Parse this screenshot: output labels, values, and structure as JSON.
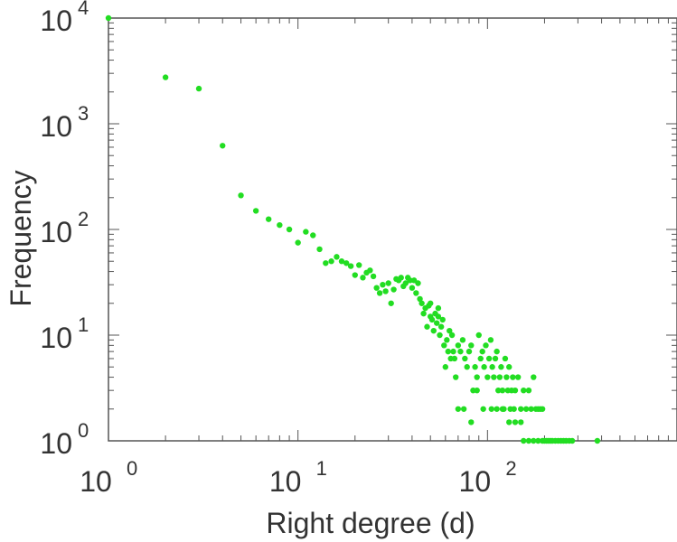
{
  "chart_data": {
    "type": "scatter",
    "xlabel": "Right degree (d)",
    "ylabel": "Frequency",
    "xscale": "log",
    "yscale": "log",
    "xlim": [
      1,
      1000
    ],
    "ylim": [
      1,
      10000
    ],
    "grid": false,
    "marker_color": "#22dd22",
    "x_ticks": [
      {
        "base": "10",
        "exp": "0",
        "value": 1
      },
      {
        "base": "10",
        "exp": "1",
        "value": 10
      },
      {
        "base": "10",
        "exp": "2",
        "value": 100
      }
    ],
    "y_ticks": [
      {
        "base": "10",
        "exp": "0",
        "value": 1
      },
      {
        "base": "10",
        "exp": "1",
        "value": 10
      },
      {
        "base": "10",
        "exp": "2",
        "value": 100
      },
      {
        "base": "10",
        "exp": "3",
        "value": 1000
      },
      {
        "base": "10",
        "exp": "4",
        "value": 10000
      }
    ],
    "series": [
      {
        "points": [
          [
            1,
            10000
          ],
          [
            2,
            2750
          ],
          [
            3,
            2150
          ],
          [
            4,
            620
          ],
          [
            5,
            210
          ],
          [
            6,
            150
          ],
          [
            7,
            125
          ],
          [
            8,
            110
          ],
          [
            9,
            100
          ],
          [
            10,
            75
          ],
          [
            11,
            95
          ],
          [
            12,
            88
          ],
          [
            13,
            65
          ],
          [
            14,
            48
          ],
          [
            15,
            50
          ],
          [
            16,
            55
          ],
          [
            17,
            50
          ],
          [
            18,
            48
          ],
          [
            19,
            45
          ],
          [
            20,
            37
          ],
          [
            21,
            46
          ],
          [
            22,
            35
          ],
          [
            23,
            39
          ],
          [
            24,
            41
          ],
          [
            25,
            36
          ],
          [
            26,
            28
          ],
          [
            27,
            25
          ],
          [
            28,
            30
          ],
          [
            29,
            26
          ],
          [
            30,
            31
          ],
          [
            31,
            20
          ],
          [
            32,
            27
          ],
          [
            33,
            34
          ],
          [
            34,
            33
          ],
          [
            35,
            35
          ],
          [
            36,
            29
          ],
          [
            37,
            31
          ],
          [
            38,
            35
          ],
          [
            39,
            33
          ],
          [
            40,
            28
          ],
          [
            41,
            33
          ],
          [
            42,
            25
          ],
          [
            43,
            31
          ],
          [
            44,
            22
          ],
          [
            45,
            20
          ],
          [
            46,
            16
          ],
          [
            47,
            18
          ],
          [
            48,
            12
          ],
          [
            49,
            19
          ],
          [
            50,
            15
          ],
          [
            51,
            14
          ],
          [
            52,
            11
          ],
          [
            53,
            16
          ],
          [
            54,
            13
          ],
          [
            55,
            15
          ],
          [
            56,
            10
          ],
          [
            57,
            12
          ],
          [
            58,
            14
          ],
          [
            59,
            8
          ],
          [
            60,
            5
          ],
          [
            61,
            9
          ],
          [
            62,
            7
          ],
          [
            63,
            11
          ],
          [
            64,
            6
          ],
          [
            65,
            10
          ],
          [
            66,
            7
          ],
          [
            67,
            6
          ],
          [
            68,
            4
          ],
          [
            70,
            8
          ],
          [
            72,
            7
          ],
          [
            74,
            9
          ],
          [
            76,
            6
          ],
          [
            78,
            5
          ],
          [
            80,
            7
          ],
          [
            82,
            8
          ],
          [
            84,
            3
          ],
          [
            86,
            5
          ],
          [
            88,
            4
          ],
          [
            90,
            10
          ],
          [
            92,
            6
          ],
          [
            94,
            7
          ],
          [
            96,
            5
          ],
          [
            98,
            8
          ],
          [
            100,
            4
          ],
          [
            102,
            6
          ],
          [
            104,
            9
          ],
          [
            106,
            5
          ],
          [
            108,
            4
          ],
          [
            110,
            6
          ],
          [
            112,
            7
          ],
          [
            114,
            3
          ],
          [
            116,
            4
          ],
          [
            118,
            5
          ],
          [
            120,
            3
          ],
          [
            122,
            2
          ],
          [
            124,
            6
          ],
          [
            126,
            4
          ],
          [
            128,
            3
          ],
          [
            130,
            5
          ],
          [
            132,
            2
          ],
          [
            134,
            3
          ],
          [
            136,
            4
          ],
          [
            138,
            2
          ],
          [
            140,
            3
          ],
          [
            145,
            4
          ],
          [
            150,
            2
          ],
          [
            155,
            3
          ],
          [
            160,
            2
          ],
          [
            165,
            3
          ],
          [
            170,
            2
          ],
          [
            175,
            4
          ],
          [
            180,
            2
          ],
          [
            185,
            2
          ],
          [
            190,
            2
          ],
          [
            195,
            2
          ],
          [
            70,
            2
          ],
          [
            75,
            2
          ],
          [
            82,
            1.5
          ],
          [
            88,
            3
          ],
          [
            95,
            2
          ],
          [
            105,
            2
          ],
          [
            112,
            2
          ],
          [
            120,
            2
          ],
          [
            130,
            1.5
          ],
          [
            140,
            1.5
          ],
          [
            150,
            1.5
          ],
          [
            155,
            1
          ],
          [
            165,
            1
          ],
          [
            175,
            1
          ],
          [
            185,
            1
          ],
          [
            195,
            1
          ],
          [
            200,
            1
          ],
          [
            205,
            1
          ],
          [
            210,
            1
          ],
          [
            215,
            1
          ],
          [
            220,
            1
          ],
          [
            228,
            1
          ],
          [
            236,
            1
          ],
          [
            244,
            1
          ],
          [
            252,
            1
          ],
          [
            260,
            1
          ],
          [
            270,
            1
          ],
          [
            280,
            1
          ],
          [
            380,
            1
          ],
          [
            50,
            20
          ],
          [
            55,
            18
          ]
        ]
      }
    ]
  }
}
